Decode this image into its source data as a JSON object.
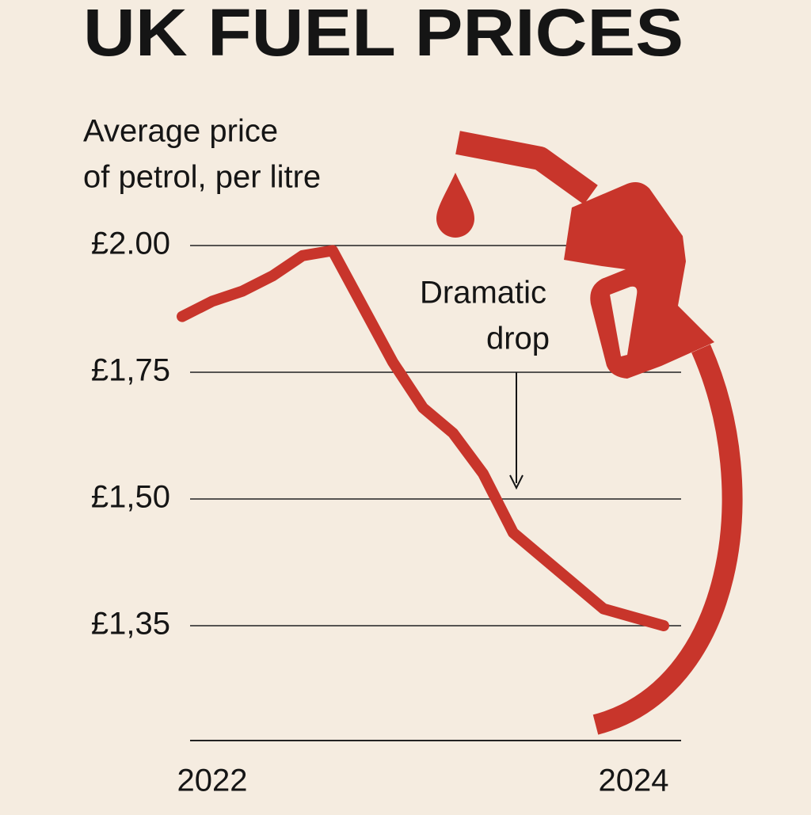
{
  "chart_data": {
    "type": "line",
    "title": "UK FUEL PRICES",
    "subtitle_lines": [
      "Average price",
      "of petrol, per litre"
    ],
    "annotation_lines": [
      "Dramatic",
      "drop"
    ],
    "categories": [
      null,
      "2022",
      null,
      null,
      null,
      null,
      null,
      null,
      null,
      null,
      null,
      null,
      null,
      null,
      null,
      "2024",
      null
    ],
    "series": [
      {
        "name": "Average price of petrol, per litre",
        "color": "#c8352b",
        "values": [
          1.86,
          1.89,
          1.91,
          1.94,
          1.98,
          1.99,
          1.88,
          1.77,
          1.68,
          1.63,
          1.55,
          1.46,
          1.43,
          1.4,
          1.37,
          1.36,
          1.35
        ]
      }
    ],
    "ylim": [
      1.21,
      2.0
    ],
    "yticks": [
      {
        "value": 2.0,
        "label": "£2.00"
      },
      {
        "value": 1.75,
        "label": "£1,75"
      },
      {
        "value": 1.5,
        "label": "£1,50"
      },
      {
        "value": 1.35,
        "label": "£1,35"
      }
    ],
    "grid": true
  }
}
